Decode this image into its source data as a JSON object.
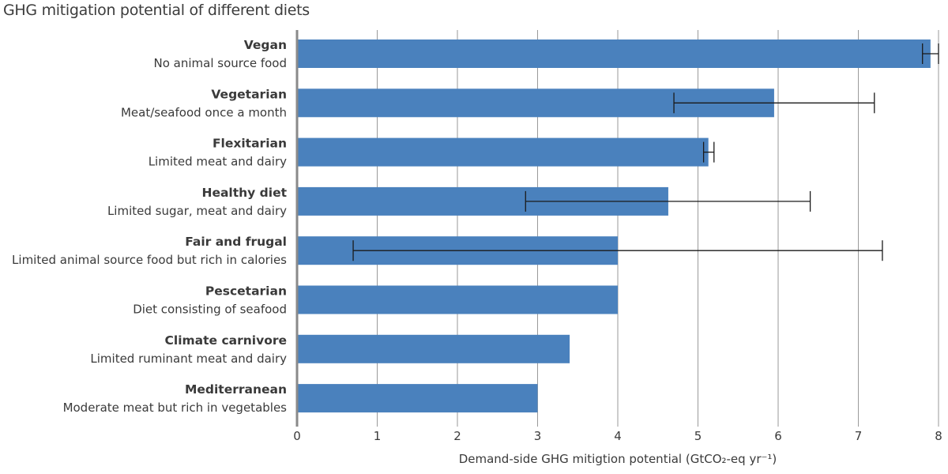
{
  "chart_data": {
    "type": "bar",
    "orientation": "horizontal",
    "title": "GHG mitigation potential of different diets",
    "xlabel": "Demand-side GHG mitigtion potential (GtCO₂-eq yr⁻¹)",
    "ylabel": "",
    "xlim": [
      0,
      8
    ],
    "xticks": [
      "0",
      "1",
      "2",
      "3",
      "4",
      "5",
      "6",
      "7",
      "8"
    ],
    "grid": "vertical",
    "bar_color": "#4a81bd",
    "categories": [
      {
        "name": "Vegan",
        "description": "No animal source food",
        "value": 7.9,
        "error": [
          7.8,
          8.0
        ]
      },
      {
        "name": "Vegetarian",
        "description": "Meat/seafood once a month",
        "value": 5.95,
        "error": [
          4.7,
          7.2
        ]
      },
      {
        "name": "Flexitarian",
        "description": "Limited meat and dairy",
        "value": 5.13,
        "error": [
          5.07,
          5.2
        ]
      },
      {
        "name": "Healthy diet",
        "description": "Limited sugar, meat and dairy",
        "value": 4.63,
        "error": [
          2.85,
          6.4
        ]
      },
      {
        "name": "Fair and frugal",
        "description": "Limited animal source food but rich in calories",
        "value": 4.0,
        "error": [
          0.7,
          7.3
        ]
      },
      {
        "name": "Pescetarian",
        "description": "Diet consisting of seafood",
        "value": 4.0,
        "error": null
      },
      {
        "name": "Climate carnivore",
        "description": "Limited ruminant meat and dairy",
        "value": 3.4,
        "error": null
      },
      {
        "name": "Mediterranean",
        "description": "Moderate meat but rich in vegetables",
        "value": 3.0,
        "error": null
      }
    ]
  }
}
